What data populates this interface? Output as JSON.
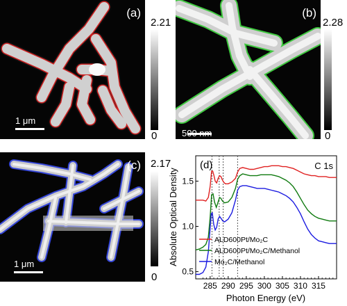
{
  "panels": {
    "a": {
      "label": "(a)",
      "scale_bar_label": "1 μm",
      "colorbar_max": "2.21",
      "colorbar_min": "0",
      "outline_color": "#e02020"
    },
    "b": {
      "label": "(b)",
      "scale_bar_label": "500 nm",
      "colorbar_max": "2.28",
      "colorbar_min": "0",
      "outline_color": "#3fc83f"
    },
    "c": {
      "label": "(c)",
      "scale_bar_label": "1 μm",
      "colorbar_max": "2.17",
      "colorbar_min": "0",
      "outline_color": "#3546d8"
    }
  },
  "chart_data": {
    "panel_label": "(d)",
    "type": "line",
    "annotation": "C 1s",
    "xlabel": "Photon Energy (eV)",
    "ylabel": "Absolute Optical Density",
    "xlim": [
      281,
      320
    ],
    "ylim": [
      0.42,
      1.78
    ],
    "xticks": [
      285,
      290,
      295,
      300,
      305,
      310,
      315
    ],
    "yticks": [
      0.5,
      1.0,
      1.5
    ],
    "ytick_labels": [
      "0.5",
      "1.0",
      "1.5"
    ],
    "dashed_lines_x": [
      285.5,
      287.5,
      288.6,
      292.6
    ],
    "legend_position": "lower-left",
    "series": [
      {
        "name": "ALD600Pt/Mo₂C",
        "color": "#e02020",
        "points": [
          [
            281,
            1.29
          ],
          [
            282,
            1.29
          ],
          [
            283,
            1.29
          ],
          [
            283.8,
            1.28
          ],
          [
            284.5,
            1.32
          ],
          [
            285.0,
            1.44
          ],
          [
            285.4,
            1.61
          ],
          [
            285.7,
            1.61
          ],
          [
            286.0,
            1.57
          ],
          [
            286.4,
            1.5
          ],
          [
            286.8,
            1.48
          ],
          [
            287.2,
            1.53
          ],
          [
            287.6,
            1.56
          ],
          [
            288.0,
            1.55
          ],
          [
            288.3,
            1.52
          ],
          [
            288.7,
            1.49
          ],
          [
            289.2,
            1.47
          ],
          [
            290,
            1.47
          ],
          [
            291,
            1.49
          ],
          [
            292,
            1.53
          ],
          [
            292.6,
            1.6
          ],
          [
            293.2,
            1.64
          ],
          [
            294,
            1.65
          ],
          [
            295,
            1.64
          ],
          [
            296,
            1.63
          ],
          [
            297,
            1.63
          ],
          [
            298,
            1.64
          ],
          [
            299,
            1.65
          ],
          [
            300,
            1.66
          ],
          [
            301,
            1.66
          ],
          [
            302,
            1.67
          ],
          [
            303,
            1.67
          ],
          [
            304,
            1.67
          ],
          [
            305,
            1.66
          ],
          [
            306,
            1.66
          ],
          [
            307,
            1.65
          ],
          [
            308,
            1.64
          ],
          [
            309,
            1.62
          ],
          [
            310,
            1.6
          ],
          [
            311,
            1.58
          ],
          [
            312,
            1.57
          ],
          [
            313,
            1.56
          ],
          [
            314,
            1.56
          ],
          [
            315,
            1.55
          ],
          [
            316,
            1.55
          ],
          [
            317,
            1.55
          ],
          [
            318,
            1.54
          ],
          [
            319,
            1.54
          ],
          [
            320,
            1.54
          ]
        ]
      },
      {
        "name": "ALD600Pt/Mo₂C/Methanol",
        "color": "#0f7a0f",
        "points": [
          [
            281,
            0.74
          ],
          [
            282,
            0.75
          ],
          [
            283,
            0.77
          ],
          [
            283.8,
            0.8
          ],
          [
            284.5,
            0.88
          ],
          [
            285.0,
            1.1
          ],
          [
            285.4,
            1.35
          ],
          [
            285.8,
            1.36
          ],
          [
            286.2,
            1.27
          ],
          [
            286.7,
            1.21
          ],
          [
            287.2,
            1.27
          ],
          [
            287.6,
            1.32
          ],
          [
            288.0,
            1.31
          ],
          [
            288.4,
            1.28
          ],
          [
            289,
            1.26
          ],
          [
            290,
            1.27
          ],
          [
            291,
            1.32
          ],
          [
            292,
            1.42
          ],
          [
            292.6,
            1.52
          ],
          [
            293.2,
            1.56
          ],
          [
            294,
            1.58
          ],
          [
            295,
            1.57
          ],
          [
            296,
            1.56
          ],
          [
            297,
            1.56
          ],
          [
            298,
            1.56
          ],
          [
            299,
            1.57
          ],
          [
            300,
            1.57
          ],
          [
            301,
            1.57
          ],
          [
            302,
            1.57
          ],
          [
            303,
            1.56
          ],
          [
            304,
            1.55
          ],
          [
            305,
            1.53
          ],
          [
            306,
            1.51
          ],
          [
            307,
            1.48
          ],
          [
            308,
            1.44
          ],
          [
            309,
            1.38
          ],
          [
            310,
            1.31
          ],
          [
            311,
            1.24
          ],
          [
            312,
            1.18
          ],
          [
            313,
            1.14
          ],
          [
            314,
            1.11
          ],
          [
            315,
            1.09
          ],
          [
            316,
            1.08
          ],
          [
            317,
            1.07
          ],
          [
            318,
            1.06
          ],
          [
            319,
            1.06
          ],
          [
            320,
            1.06
          ]
        ]
      },
      {
        "name": "Mo₂C/Methanol",
        "color": "#1a1ae0",
        "points": [
          [
            281,
            0.47
          ],
          [
            282,
            0.47
          ],
          [
            283,
            0.49
          ],
          [
            283.8,
            0.55
          ],
          [
            284.5,
            0.72
          ],
          [
            285.0,
            0.98
          ],
          [
            285.3,
            1.14
          ],
          [
            285.6,
            1.15
          ],
          [
            286.0,
            1.02
          ],
          [
            286.4,
            0.96
          ],
          [
            286.8,
            0.99
          ],
          [
            287.2,
            1.08
          ],
          [
            287.6,
            1.11
          ],
          [
            288.0,
            1.09
          ],
          [
            288.5,
            1.06
          ],
          [
            289,
            1.05
          ],
          [
            290,
            1.08
          ],
          [
            291,
            1.15
          ],
          [
            292,
            1.29
          ],
          [
            292.6,
            1.4
          ],
          [
            293.2,
            1.44
          ],
          [
            294,
            1.45
          ],
          [
            295,
            1.45
          ],
          [
            296,
            1.44
          ],
          [
            297,
            1.43
          ],
          [
            298,
            1.42
          ],
          [
            299,
            1.42
          ],
          [
            300,
            1.42
          ],
          [
            301,
            1.41
          ],
          [
            302,
            1.4
          ],
          [
            303,
            1.39
          ],
          [
            304,
            1.38
          ],
          [
            305,
            1.36
          ],
          [
            306,
            1.34
          ],
          [
            307,
            1.31
          ],
          [
            308,
            1.27
          ],
          [
            309,
            1.21
          ],
          [
            310,
            1.14
          ],
          [
            311,
            1.05
          ],
          [
            312,
            0.97
          ],
          [
            313,
            0.91
          ],
          [
            314,
            0.87
          ],
          [
            315,
            0.84
          ],
          [
            316,
            0.83
          ],
          [
            317,
            0.82
          ],
          [
            318,
            0.81
          ],
          [
            319,
            0.81
          ],
          [
            320,
            0.81
          ]
        ]
      }
    ]
  }
}
